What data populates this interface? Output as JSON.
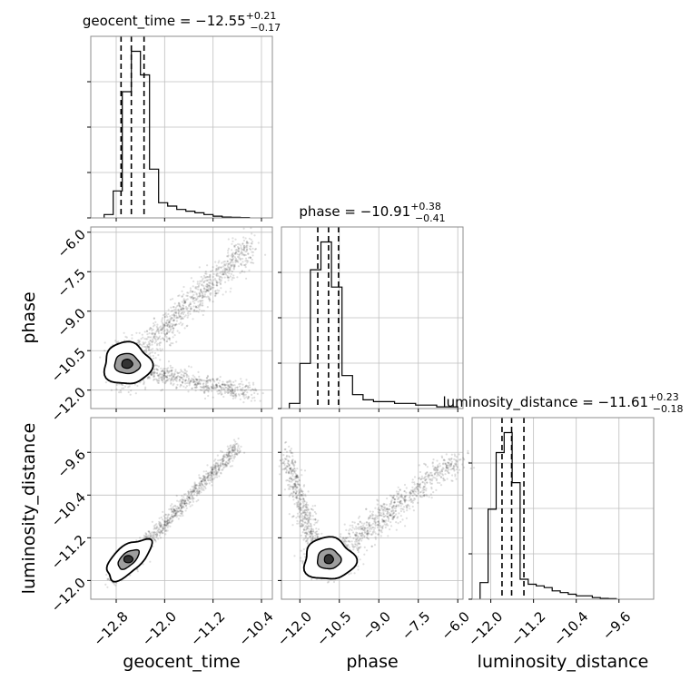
{
  "chart_data": {
    "type": "corner",
    "parameters": [
      "geocent_time",
      "phase",
      "luminosity_distance"
    ],
    "grid": true,
    "quantiles_lines": "dashed",
    "titles": [
      {
        "name": "geocent_time",
        "median": "−12.55",
        "plus": "+0.21",
        "minus": "−0.17"
      },
      {
        "name": "phase",
        "median": "−10.91",
        "plus": "+0.38",
        "minus": "−0.41"
      },
      {
        "name": "luminosity_distance",
        "median": "−11.61",
        "plus": "+0.23",
        "minus": "−0.18"
      }
    ],
    "axes": {
      "geocent_time": {
        "label": "geocent_time",
        "range": [
          -13.22,
          -10.22
        ],
        "ticks": [
          -12.8,
          -12.0,
          -11.2,
          -10.4
        ],
        "tick_labels": [
          "−12.8",
          "−12.0",
          "−11.2",
          "−10.4"
        ]
      },
      "phase": {
        "label": "phase",
        "range": [
          -12.7,
          -5.8
        ],
        "ticks": [
          -12.0,
          -10.5,
          -9.0,
          -7.5,
          -6.0
        ],
        "tick_labels": [
          "−12.0",
          "−10.5",
          "−9.0",
          "−7.5",
          "−6.0"
        ]
      },
      "luminosity_distance": {
        "label": "luminosity_distance",
        "range": [
          -12.35,
          -8.95
        ],
        "ticks": [
          -12.0,
          -11.2,
          -10.4,
          -9.6
        ],
        "tick_labels": [
          "−12.0",
          "−11.2",
          "−10.4",
          "−9.6"
        ]
      }
    },
    "histograms": {
      "geocent_time": {
        "bin_edges": [
          -13.0,
          -12.85,
          -12.7,
          -12.55,
          -12.4,
          -12.25,
          -12.1,
          -11.95,
          -11.8,
          -11.65,
          -11.5,
          -11.35,
          -11.2,
          -11.05,
          -10.9,
          -10.75,
          -10.6
        ],
        "counts": [
          2,
          16,
          75,
          99,
          85,
          29,
          9,
          7,
          5,
          4,
          3,
          2,
          1,
          0.5,
          0.3,
          0.2
        ],
        "quantiles": [
          -12.72,
          -12.55,
          -12.34
        ]
      },
      "phase": {
        "bin_edges": [
          -12.4,
          -12.0,
          -11.6,
          -11.2,
          -10.8,
          -10.4,
          -10.0,
          -9.6,
          -9.2,
          -8.8,
          -8.4,
          -8.0,
          -7.6,
          -7.2,
          -6.8,
          -6.4,
          -6.0
        ],
        "counts": [
          3,
          26,
          80,
          96,
          70,
          19,
          8,
          5,
          4,
          4,
          3,
          3,
          2,
          2,
          1,
          1
        ],
        "quantiles": [
          -11.32,
          -10.91,
          -10.53
        ]
      },
      "luminosity_distance": {
        "bin_edges": [
          -12.2,
          -12.05,
          -11.9,
          -11.75,
          -11.6,
          -11.45,
          -11.3,
          -11.15,
          -11.0,
          -10.85,
          -10.7,
          -10.55,
          -10.4,
          -10.25,
          -10.1,
          -9.95,
          -9.8,
          -9.65
        ],
        "counts": [
          10,
          54,
          88,
          100,
          70,
          12,
          9,
          8,
          7,
          5,
          4,
          3,
          2,
          2,
          1,
          0.5,
          0.3
        ],
        "quantiles": [
          -11.79,
          -11.61,
          -11.38
        ]
      }
    },
    "contours": {
      "phase_vs_geocent_time": {
        "center": [
          -12.62,
          -11.0
        ]
      },
      "luminosity_distance_vs_geocent_time": {
        "center": [
          -12.6,
          -11.6
        ]
      },
      "luminosity_distance_vs_phase": {
        "center": [
          -10.9,
          -11.6
        ]
      }
    }
  }
}
